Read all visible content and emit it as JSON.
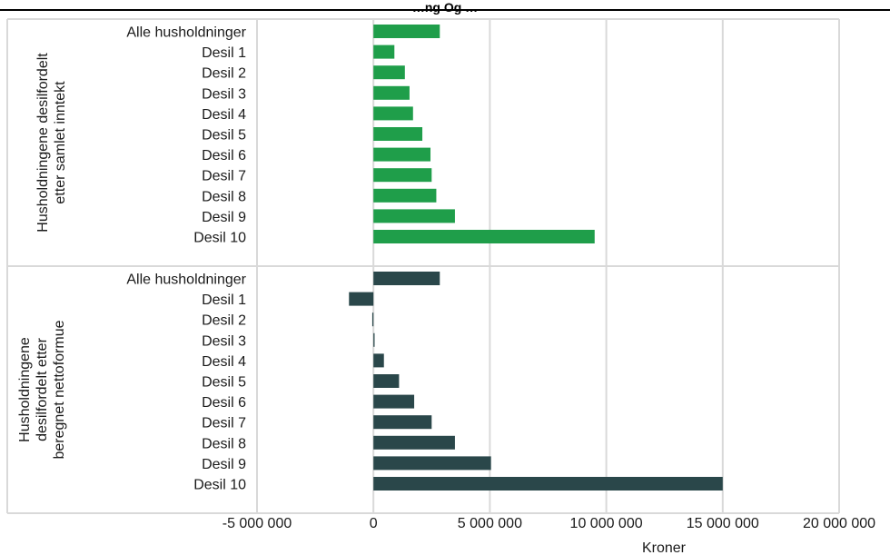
{
  "chart_data": {
    "type": "bar",
    "orientation": "horizontal",
    "title": "…ng Og …",
    "xlabel": "Kroner",
    "xlim": [
      -5000000,
      20000000
    ],
    "x_ticks": [
      -5000000,
      0,
      5000000,
      10000000,
      15000000,
      20000000
    ],
    "x_tick_labels": [
      "-5 000 000",
      "0",
      "5 000 000",
      "10 000 000",
      "15 000 000",
      "20 000 000"
    ],
    "grid": true,
    "groups": [
      {
        "label": "Husholdningene desilfordelt etter samlet inntekt",
        "label_lines": [
          "Husholdningene desilfordelt",
          "etter samlet inntekt"
        ],
        "color": "#1f9e4a",
        "categories": [
          "Alle husholdninger",
          "Desil 1",
          "Desil 2",
          "Desil 3",
          "Desil 4",
          "Desil 5",
          "Desil 6",
          "Desil 7",
          "Desil 8",
          "Desil 9",
          "Desil 10"
        ],
        "values": [
          2850000,
          900000,
          1350000,
          1550000,
          1700000,
          2100000,
          2450000,
          2500000,
          2700000,
          3500000,
          9500000
        ]
      },
      {
        "label": "Husholdningene desilfordelt etter beregnet nettoformue",
        "label_lines": [
          "Husholdningene",
          "desilfordelt etter",
          "beregnet nettoformue"
        ],
        "color": "#2a474a",
        "categories": [
          "Alle husholdninger",
          "Desil 1",
          "Desil 2",
          "Desil 3",
          "Desil 4",
          "Desil 5",
          "Desil 6",
          "Desil 7",
          "Desil 8",
          "Desil 9",
          "Desil 10"
        ],
        "values": [
          2850000,
          -1050000,
          -50000,
          50000,
          450000,
          1100000,
          1750000,
          2500000,
          3500000,
          5050000,
          15000000
        ]
      }
    ]
  }
}
